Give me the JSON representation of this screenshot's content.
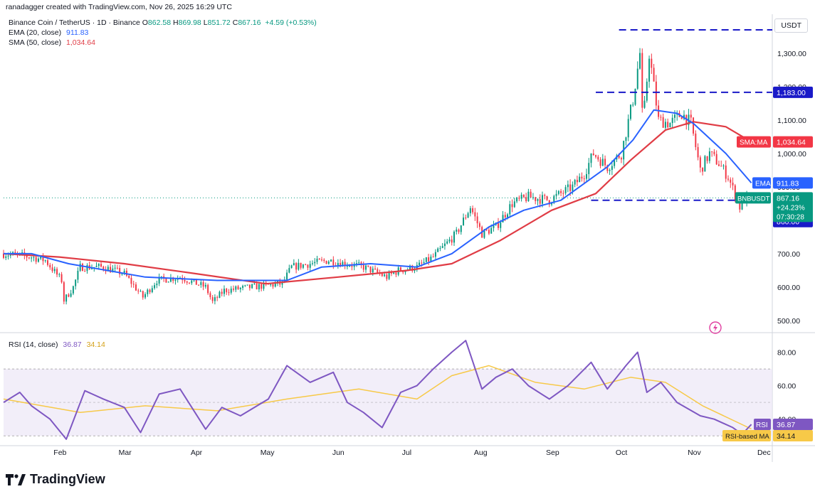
{
  "header": {
    "text": "ranadagger created with TradingView.com, Nov 26, 2025 16:29 UTC"
  },
  "legend": {
    "title": "Binance Coin / TetherUS · 1D · Binance",
    "ohlc": [
      {
        "label": "O",
        "value": "862.58"
      },
      {
        "label": "H",
        "value": "869.98"
      },
      {
        "label": "L",
        "value": "851.72"
      },
      {
        "label": "C",
        "value": "867.16"
      }
    ],
    "change": "+4.59 (+0.53%)",
    "ema_label": "EMA (20, close)",
    "ema_value": "911.83",
    "sma_label": "SMA (50, close)",
    "sma_value": "1,034.64",
    "rsi_label": "RSI (14, close)",
    "rsi_value": "36.87",
    "rsi_ma_value": "34.14"
  },
  "currency": "USDT",
  "brand": "TradingView",
  "colors": {
    "up": "#089981",
    "down": "#f23645",
    "ema": "#2962ff",
    "sma": "#e03c45",
    "rsi": "#7e57c2",
    "rsi_ma": "#f7c948",
    "band": "#ede7f6",
    "level": "#1a1ac8"
  },
  "tags": {
    "sma": {
      "label": "SMA:MA",
      "value": "1,034.64"
    },
    "ema": {
      "label": "EMA",
      "value": "911.83"
    },
    "price": {
      "label": "BNBUSDT",
      "value": "867.16",
      "change": "+24.23%",
      "timer": "07:30:28"
    },
    "level_860": "860.00",
    "level_1183": "1,183.00",
    "rsi": {
      "label": "RSI",
      "value": "36.87"
    },
    "rsi_ma": {
      "label": "RSI-based MA",
      "value": "34.14"
    }
  },
  "chart_data": [
    {
      "type": "candlestick",
      "title": "Binance Coin / TetherUS · 1D · Binance",
      "xlabel": "",
      "ylabel": "",
      "x_ticks": [
        "Feb",
        "Mar",
        "Apr",
        "May",
        "Jun",
        "Jul",
        "Aug",
        "Sep",
        "Oct",
        "Nov",
        "Dec"
      ],
      "y_ticks": [
        "500.00",
        "600.00",
        "700.00",
        "800.00",
        "900.00",
        "1,000.00",
        "1,100.00",
        "1,200.00",
        "1,300.00"
      ],
      "ylim": [
        470,
        1370
      ],
      "x_range": [
        "2025-01-08",
        "2025-12-05"
      ],
      "horizontal_levels": [
        860,
        1183,
        1370
      ],
      "ohlc_anchors": [
        [
          "2025-01-08",
          700
        ],
        [
          "2025-01-20",
          690
        ],
        [
          "2025-01-26",
          680
        ],
        [
          "2025-02-02",
          620
        ],
        [
          "2025-02-03",
          560
        ],
        [
          "2025-02-07",
          600
        ],
        [
          "2025-02-10",
          660
        ],
        [
          "2025-02-20",
          660
        ],
        [
          "2025-03-01",
          640
        ],
        [
          "2025-03-09",
          570
        ],
        [
          "2025-03-15",
          620
        ],
        [
          "2025-03-25",
          630
        ],
        [
          "2025-04-05",
          600
        ],
        [
          "2025-04-08",
          555
        ],
        [
          "2025-04-13",
          590
        ],
        [
          "2025-04-25",
          600
        ],
        [
          "2025-05-08",
          610
        ],
        [
          "2025-05-12",
          660
        ],
        [
          "2025-05-28",
          680
        ],
        [
          "2025-06-12",
          660
        ],
        [
          "2025-06-22",
          630
        ],
        [
          "2025-06-27",
          650
        ],
        [
          "2025-07-05",
          660
        ],
        [
          "2025-07-12",
          690
        ],
        [
          "2025-07-22",
          760
        ],
        [
          "2025-07-28",
          840
        ],
        [
          "2025-08-02",
          760
        ],
        [
          "2025-08-08",
          780
        ],
        [
          "2025-08-15",
          850
        ],
        [
          "2025-08-22",
          870
        ],
        [
          "2025-08-31",
          860
        ],
        [
          "2025-09-10",
          900
        ],
        [
          "2025-09-15",
          940
        ],
        [
          "2025-09-19",
          1000
        ],
        [
          "2025-09-25",
          960
        ],
        [
          "2025-10-01",
          1000
        ],
        [
          "2025-10-06",
          1160
        ],
        [
          "2025-10-09",
          1300
        ],
        [
          "2025-10-10",
          1120
        ],
        [
          "2025-10-11",
          1140
        ],
        [
          "2025-10-13",
          1300
        ],
        [
          "2025-10-15",
          1200
        ],
        [
          "2025-10-17",
          1100
        ],
        [
          "2025-10-22",
          1090
        ],
        [
          "2025-10-27",
          1120
        ],
        [
          "2025-10-31",
          1090
        ],
        [
          "2025-11-04",
          950
        ],
        [
          "2025-11-08",
          1000
        ],
        [
          "2025-11-12",
          970
        ],
        [
          "2025-11-16",
          930
        ],
        [
          "2025-11-21",
          840
        ],
        [
          "2025-11-22",
          860
        ],
        [
          "2025-11-26",
          867.16
        ]
      ],
      "series": [
        {
          "name": "EMA (20, close)",
          "last": 911.83,
          "points": [
            [
              "2025-01-08",
              700
            ],
            [
              "2025-01-20",
              700
            ],
            [
              "2025-02-05",
              670
            ],
            [
              "2025-03-10",
              630
            ],
            [
              "2025-04-10",
              620
            ],
            [
              "2025-05-10",
              620
            ],
            [
              "2025-05-25",
              660
            ],
            [
              "2025-06-15",
              670
            ],
            [
              "2025-07-05",
              660
            ],
            [
              "2025-07-20",
              700
            ],
            [
              "2025-08-05",
              780
            ],
            [
              "2025-08-20",
              830
            ],
            [
              "2025-09-05",
              860
            ],
            [
              "2025-09-25",
              960
            ],
            [
              "2025-10-06",
              1040
            ],
            [
              "2025-10-15",
              1130
            ],
            [
              "2025-10-25",
              1120
            ],
            [
              "2025-11-01",
              1090
            ],
            [
              "2025-11-15",
              1000
            ],
            [
              "2025-11-26",
              911.83
            ]
          ]
        },
        {
          "name": "SMA (50, close)",
          "last": 1034.64,
          "points": [
            [
              "2025-01-08",
              700
            ],
            [
              "2025-02-01",
              690
            ],
            [
              "2025-03-01",
              670
            ],
            [
              "2025-04-01",
              640
            ],
            [
              "2025-05-01",
              610
            ],
            [
              "2025-06-01",
              630
            ],
            [
              "2025-07-01",
              650
            ],
            [
              "2025-07-20",
              670
            ],
            [
              "2025-08-10",
              740
            ],
            [
              "2025-09-01",
              830
            ],
            [
              "2025-09-20",
              880
            ],
            [
              "2025-10-05",
              980
            ],
            [
              "2025-10-20",
              1070
            ],
            [
              "2025-11-01",
              1095
            ],
            [
              "2025-11-15",
              1080
            ],
            [
              "2025-11-26",
              1034.64
            ]
          ]
        }
      ]
    },
    {
      "type": "line",
      "title": "RSI (14, close)",
      "ylim": [
        25,
        90
      ],
      "y_ticks": [
        "40.00",
        "60.00",
        "80.00"
      ],
      "band": [
        30,
        70
      ],
      "series": [
        {
          "name": "RSI (14, close)",
          "last": 36.87,
          "points": [
            [
              "2025-01-08",
              50
            ],
            [
              "2025-01-15",
              56
            ],
            [
              "2025-01-20",
              48
            ],
            [
              "2025-01-28",
              40
            ],
            [
              "2025-02-04",
              28
            ],
            [
              "2025-02-12",
              57
            ],
            [
              "2025-02-20",
              52
            ],
            [
              "2025-03-01",
              47
            ],
            [
              "2025-03-08",
              32
            ],
            [
              "2025-03-16",
              55
            ],
            [
              "2025-03-25",
              58
            ],
            [
              "2025-04-05",
              34
            ],
            [
              "2025-04-12",
              47
            ],
            [
              "2025-04-20",
              42
            ],
            [
              "2025-05-02",
              52
            ],
            [
              "2025-05-10",
              72
            ],
            [
              "2025-05-20",
              62
            ],
            [
              "2025-05-30",
              68
            ],
            [
              "2025-06-05",
              50
            ],
            [
              "2025-06-12",
              44
            ],
            [
              "2025-06-20",
              35
            ],
            [
              "2025-06-28",
              56
            ],
            [
              "2025-07-05",
              60
            ],
            [
              "2025-07-12",
              70
            ],
            [
              "2025-07-20",
              80
            ],
            [
              "2025-07-26",
              87
            ],
            [
              "2025-08-02",
              58
            ],
            [
              "2025-08-08",
              65
            ],
            [
              "2025-08-15",
              70
            ],
            [
              "2025-08-22",
              60
            ],
            [
              "2025-08-31",
              52
            ],
            [
              "2025-09-08",
              60
            ],
            [
              "2025-09-18",
              74
            ],
            [
              "2025-09-25",
              58
            ],
            [
              "2025-10-03",
              72
            ],
            [
              "2025-10-08",
              80
            ],
            [
              "2025-10-12",
              56
            ],
            [
              "2025-10-18",
              62
            ],
            [
              "2025-10-25",
              50
            ],
            [
              "2025-11-04",
              42
            ],
            [
              "2025-11-10",
              40
            ],
            [
              "2025-11-18",
              35
            ],
            [
              "2025-11-22",
              31
            ],
            [
              "2025-11-26",
              36.87
            ]
          ]
        },
        {
          "name": "RSI-based MA",
          "last": 34.14,
          "points": [
            [
              "2025-01-08",
              52
            ],
            [
              "2025-02-10",
              44
            ],
            [
              "2025-03-10",
              48
            ],
            [
              "2025-04-10",
              45
            ],
            [
              "2025-05-10",
              52
            ],
            [
              "2025-06-10",
              58
            ],
            [
              "2025-07-05",
              52
            ],
            [
              "2025-07-20",
              66
            ],
            [
              "2025-08-05",
              72
            ],
            [
              "2025-08-25",
              62
            ],
            [
              "2025-09-15",
              58
            ],
            [
              "2025-10-05",
              65
            ],
            [
              "2025-10-20",
              62
            ],
            [
              "2025-11-05",
              48
            ],
            [
              "2025-11-26",
              34.14
            ]
          ]
        }
      ]
    }
  ]
}
